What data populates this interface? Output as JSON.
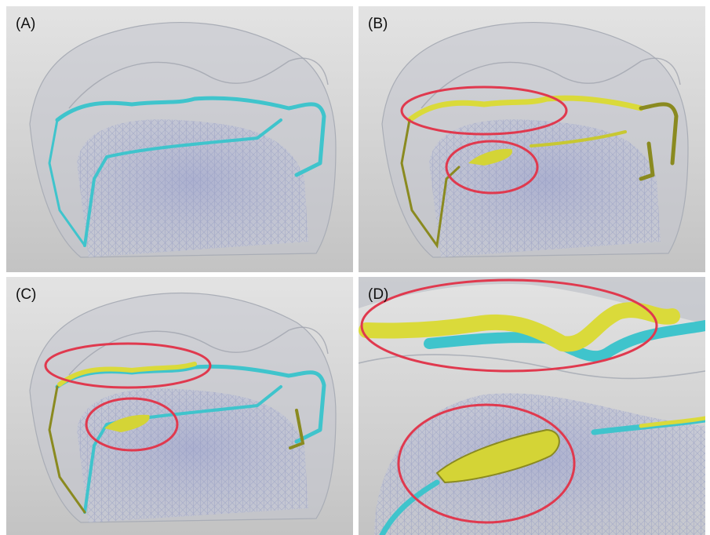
{
  "panels": [
    {
      "id": "A",
      "label": "(A)"
    },
    {
      "id": "B",
      "label": "(B)"
    },
    {
      "id": "C",
      "label": "(C)"
    },
    {
      "id": "D",
      "label": "(D)"
    }
  ],
  "colors": {
    "background": "#d6d6d6",
    "tooth_shell": "#b8bcc6",
    "pulp_mesh": "#8e96c0",
    "cyan_trace": "#3fc4cc",
    "yellow_trace": "#dada3a",
    "dark_yellow_trace": "#8a8a20",
    "highlight_ellipse": "#e0394e"
  }
}
